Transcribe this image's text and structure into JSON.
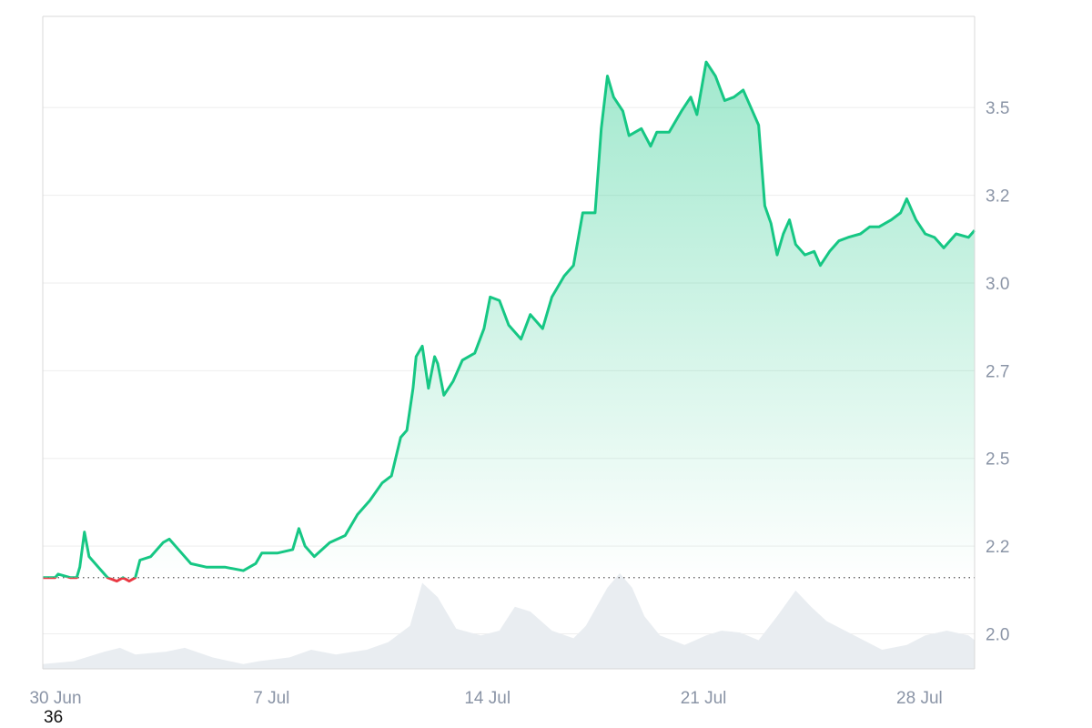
{
  "chart_data": {
    "type": "area",
    "x_ticks": [
      "30 Jun",
      "7 Jul",
      "14 Jul",
      "21 Jul",
      "28 Jul"
    ],
    "y_ticks": [
      "2.0",
      "2.2",
      "2.5",
      "2.7",
      "3.0",
      "3.2",
      "3.5"
    ],
    "y_tick_values": [
      2.0,
      2.25,
      2.5,
      2.75,
      3.0,
      3.25,
      3.5
    ],
    "ylim": [
      1.9,
      3.76
    ],
    "baseline": 2.16,
    "grid": true,
    "x_range_days": [
      0,
      30.2
    ],
    "x_tick_days": [
      0,
      7,
      14,
      21,
      28
    ],
    "colors": {
      "up": "#16c784",
      "down": "#ea3943",
      "area_top": "#16c784",
      "grid": "#eeeeee",
      "axis": "#d8d8d8",
      "volume": "#e9edf1",
      "baseline": "#555555"
    },
    "price": [
      [
        0.0,
        2.16
      ],
      [
        0.4,
        2.16
      ],
      [
        0.5,
        2.17
      ],
      [
        0.9,
        2.16
      ],
      [
        1.1,
        2.16
      ],
      [
        1.2,
        2.19
      ],
      [
        1.35,
        2.29
      ],
      [
        1.5,
        2.22
      ],
      [
        1.8,
        2.19
      ],
      [
        2.1,
        2.16
      ],
      [
        2.4,
        2.15
      ],
      [
        2.6,
        2.16
      ],
      [
        2.8,
        2.15
      ],
      [
        3.0,
        2.16
      ],
      [
        3.15,
        2.21
      ],
      [
        3.5,
        2.22
      ],
      [
        3.9,
        2.26
      ],
      [
        4.1,
        2.27
      ],
      [
        4.4,
        2.24
      ],
      [
        4.8,
        2.2
      ],
      [
        5.3,
        2.19
      ],
      [
        5.9,
        2.19
      ],
      [
        6.5,
        2.18
      ],
      [
        6.9,
        2.2
      ],
      [
        7.1,
        2.23
      ],
      [
        7.6,
        2.23
      ],
      [
        8.1,
        2.24
      ],
      [
        8.3,
        2.3
      ],
      [
        8.5,
        2.25
      ],
      [
        8.8,
        2.22
      ],
      [
        9.3,
        2.26
      ],
      [
        9.8,
        2.28
      ],
      [
        10.2,
        2.34
      ],
      [
        10.6,
        2.38
      ],
      [
        11.0,
        2.43
      ],
      [
        11.3,
        2.45
      ],
      [
        11.6,
        2.56
      ],
      [
        11.8,
        2.58
      ],
      [
        12.0,
        2.7
      ],
      [
        12.1,
        2.79
      ],
      [
        12.3,
        2.82
      ],
      [
        12.5,
        2.7
      ],
      [
        12.7,
        2.79
      ],
      [
        12.8,
        2.77
      ],
      [
        13.0,
        2.68
      ],
      [
        13.3,
        2.72
      ],
      [
        13.6,
        2.78
      ],
      [
        14.0,
        2.8
      ],
      [
        14.3,
        2.87
      ],
      [
        14.5,
        2.96
      ],
      [
        14.8,
        2.95
      ],
      [
        15.1,
        2.88
      ],
      [
        15.5,
        2.84
      ],
      [
        15.8,
        2.91
      ],
      [
        16.2,
        2.87
      ],
      [
        16.5,
        2.96
      ],
      [
        16.9,
        3.02
      ],
      [
        17.2,
        3.05
      ],
      [
        17.5,
        3.2
      ],
      [
        17.9,
        3.2
      ],
      [
        18.1,
        3.44
      ],
      [
        18.3,
        3.59
      ],
      [
        18.5,
        3.53
      ],
      [
        18.8,
        3.49
      ],
      [
        19.0,
        3.42
      ],
      [
        19.4,
        3.44
      ],
      [
        19.7,
        3.39
      ],
      [
        19.9,
        3.43
      ],
      [
        20.3,
        3.43
      ],
      [
        20.7,
        3.49
      ],
      [
        21.0,
        3.53
      ],
      [
        21.2,
        3.48
      ],
      [
        21.5,
        3.63
      ],
      [
        21.8,
        3.59
      ],
      [
        22.1,
        3.52
      ],
      [
        22.4,
        3.53
      ],
      [
        22.7,
        3.55
      ],
      [
        23.0,
        3.49
      ],
      [
        23.2,
        3.45
      ],
      [
        23.4,
        3.22
      ],
      [
        23.6,
        3.17
      ],
      [
        23.8,
        3.08
      ],
      [
        24.0,
        3.14
      ],
      [
        24.2,
        3.18
      ],
      [
        24.4,
        3.11
      ],
      [
        24.7,
        3.08
      ],
      [
        25.0,
        3.09
      ],
      [
        25.2,
        3.05
      ],
      [
        25.5,
        3.09
      ],
      [
        25.8,
        3.12
      ],
      [
        26.1,
        3.13
      ],
      [
        26.5,
        3.14
      ],
      [
        26.8,
        3.16
      ],
      [
        27.1,
        3.16
      ],
      [
        27.5,
        3.18
      ],
      [
        27.8,
        3.2
      ],
      [
        28.0,
        3.24
      ],
      [
        28.3,
        3.18
      ],
      [
        28.6,
        3.14
      ],
      [
        28.9,
        3.13
      ],
      [
        29.2,
        3.1
      ],
      [
        29.6,
        3.14
      ],
      [
        30.0,
        3.13
      ],
      [
        30.2,
        3.15
      ]
    ],
    "volume": [
      [
        0.0,
        0.05
      ],
      [
        1.0,
        0.08
      ],
      [
        2.0,
        0.18
      ],
      [
        2.5,
        0.22
      ],
      [
        3.0,
        0.15
      ],
      [
        4.0,
        0.18
      ],
      [
        4.6,
        0.22
      ],
      [
        5.5,
        0.12
      ],
      [
        6.5,
        0.05
      ],
      [
        7.0,
        0.08
      ],
      [
        8.0,
        0.12
      ],
      [
        8.7,
        0.2
      ],
      [
        9.5,
        0.15
      ],
      [
        10.5,
        0.2
      ],
      [
        11.2,
        0.28
      ],
      [
        11.9,
        0.45
      ],
      [
        12.3,
        0.9
      ],
      [
        12.8,
        0.75
      ],
      [
        13.4,
        0.42
      ],
      [
        14.2,
        0.35
      ],
      [
        14.8,
        0.4
      ],
      [
        15.3,
        0.65
      ],
      [
        15.8,
        0.6
      ],
      [
        16.5,
        0.4
      ],
      [
        17.2,
        0.32
      ],
      [
        17.6,
        0.45
      ],
      [
        18.3,
        0.85
      ],
      [
        18.7,
        1.0
      ],
      [
        19.1,
        0.85
      ],
      [
        19.5,
        0.55
      ],
      [
        20.0,
        0.35
      ],
      [
        20.8,
        0.25
      ],
      [
        21.5,
        0.35
      ],
      [
        22.0,
        0.4
      ],
      [
        22.6,
        0.38
      ],
      [
        23.2,
        0.3
      ],
      [
        23.8,
        0.55
      ],
      [
        24.4,
        0.82
      ],
      [
        24.9,
        0.65
      ],
      [
        25.4,
        0.5
      ],
      [
        26.0,
        0.4
      ],
      [
        26.6,
        0.3
      ],
      [
        27.2,
        0.2
      ],
      [
        28.0,
        0.25
      ],
      [
        28.6,
        0.35
      ],
      [
        29.3,
        0.4
      ],
      [
        30.0,
        0.35
      ],
      [
        30.2,
        0.3
      ]
    ],
    "corner_note": "36"
  }
}
